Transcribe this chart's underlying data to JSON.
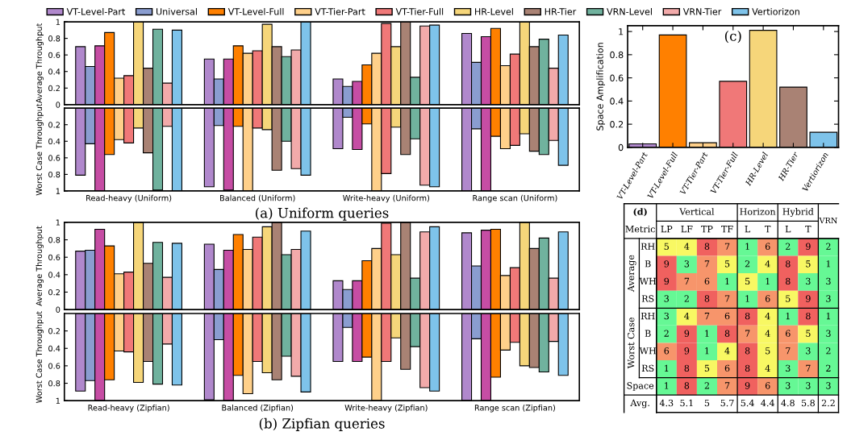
{
  "chart_data": [
    {
      "type": "bar",
      "ylabel": "Average Throughput",
      "categories": [
        null,
        null,
        null,
        null
      ],
      "ylim": [
        0,
        1
      ],
      "yticks": [
        0,
        0.2,
        0.4,
        0.6,
        0.8,
        1
      ],
      "tick_labels": "y",
      "legend": "top",
      "series": [
        {
          "name": "VT-Level-Part",
          "color": "#b088cc",
          "values": [
            0.7,
            0.55,
            0.31,
            0.86
          ]
        },
        {
          "name": "Universal",
          "color": "#8a9dd0",
          "values": [
            0.46,
            0.31,
            0.22,
            0.51
          ]
        },
        {
          "color": "#c64da4",
          "values": [
            0.71,
            0.55,
            0.28,
            0.82
          ]
        },
        {
          "name": "VT-Level-Full",
          "color": "#ff8000",
          "values": [
            0.87,
            0.71,
            0.48,
            0.92
          ]
        },
        {
          "name": "VT-Tier-Part",
          "color": "#ffd08a",
          "values": [
            0.32,
            0.62,
            0.62,
            0.47
          ]
        },
        {
          "name": "VT-Tier-Full",
          "color": "#f07878",
          "values": [
            0.35,
            0.65,
            0.98,
            0.61
          ]
        },
        {
          "name": "HR-Level",
          "color": "#f6d67a",
          "values": [
            1.0,
            0.97,
            0.7,
            1.0
          ]
        },
        {
          "name": "HR-Tier",
          "color": "#a98274",
          "values": [
            0.44,
            0.7,
            1.0,
            0.7
          ]
        },
        {
          "name": "VRN-Level",
          "color": "#70b29e",
          "values": [
            0.91,
            0.58,
            0.33,
            0.79
          ]
        },
        {
          "name": "VRN-Tier",
          "color": "#f2aaaa",
          "values": [
            0.26,
            0.66,
            0.95,
            0.44
          ]
        },
        {
          "name": "Vertiorizon",
          "color": "#7ec3ea",
          "values": [
            0.9,
            1.0,
            0.96,
            0.84
          ]
        }
      ]
    },
    {
      "type": "bar",
      "ylabel": "Worst Case Throughput",
      "categories": [
        "Read-heavy (Uniform)",
        "Balanced (Uniform)",
        "Write-heavy (Uniform)",
        "Range scan (Uniform)"
      ],
      "ylim": [
        1,
        0
      ],
      "yticks": [
        0.2,
        0.4,
        0.6,
        0.8,
        1
      ],
      "annotations": [
        "(a) Uniform queries"
      ],
      "series": [
        {
          "color": "#b088cc",
          "values": [
            0.81,
            0.95,
            0.49,
            1.0
          ]
        },
        {
          "color": "#8a9dd0",
          "values": [
            0.43,
            0.21,
            0.11,
            0.25
          ]
        },
        {
          "color": "#c64da4",
          "values": [
            1.0,
            0.99,
            0.5,
            1.0
          ]
        },
        {
          "color": "#ff8000",
          "values": [
            0.56,
            0.22,
            0.19,
            0.34
          ]
        },
        {
          "color": "#ffd08a",
          "values": [
            0.38,
            1.0,
            1.0,
            0.49
          ]
        },
        {
          "color": "#f07878",
          "values": [
            0.42,
            0.24,
            0.79,
            0.45
          ]
        },
        {
          "color": "#f6d67a",
          "values": [
            0.24,
            0.26,
            0.23,
            0.31
          ]
        },
        {
          "color": "#a98274",
          "values": [
            0.54,
            0.75,
            0.56,
            0.52
          ]
        },
        {
          "color": "#70b29e",
          "values": [
            0.99,
            0.4,
            0.37,
            0.56
          ]
        },
        {
          "color": "#f2aaaa",
          "values": [
            0.22,
            0.73,
            0.93,
            0.39
          ]
        },
        {
          "color": "#7ec3ea",
          "values": [
            1.0,
            0.81,
            0.95,
            0.69
          ]
        }
      ]
    },
    {
      "type": "bar",
      "ylabel": "Average Throughput",
      "categories": [
        null,
        null,
        null,
        null
      ],
      "ylim": [
        0,
        1
      ],
      "yticks": [
        0,
        0.2,
        0.4,
        0.6,
        0.8,
        1
      ],
      "tick_labels": "y",
      "series": [
        {
          "color": "#b088cc",
          "values": [
            0.67,
            0.75,
            0.33,
            0.88
          ]
        },
        {
          "color": "#8a9dd0",
          "values": [
            0.68,
            0.46,
            0.23,
            0.5
          ]
        },
        {
          "color": "#c64da4",
          "values": [
            0.92,
            0.68,
            0.33,
            0.91
          ]
        },
        {
          "color": "#ff8000",
          "values": [
            0.73,
            0.86,
            0.56,
            0.92
          ]
        },
        {
          "color": "#ffd08a",
          "values": [
            0.41,
            0.69,
            0.7,
            0.39
          ]
        },
        {
          "color": "#f07878",
          "values": [
            0.43,
            0.83,
            0.99,
            0.48
          ]
        },
        {
          "color": "#f6d67a",
          "values": [
            1.0,
            0.95,
            0.63,
            1.0
          ]
        },
        {
          "color": "#a98274",
          "values": [
            0.53,
            1.0,
            1.0,
            0.7
          ]
        },
        {
          "color": "#70b29e",
          "values": [
            0.77,
            0.63,
            0.36,
            0.82
          ]
        },
        {
          "color": "#f2aaaa",
          "values": [
            0.37,
            0.69,
            0.89,
            0.36
          ]
        },
        {
          "color": "#7ec3ea",
          "values": [
            0.76,
            0.9,
            0.95,
            0.89
          ]
        }
      ]
    },
    {
      "type": "bar",
      "ylabel": "Worst Case Throughput",
      "categories": [
        "Read-heavy (Zipfian)",
        "Balanced (Zipfian)",
        "Write-heavy (Zipfian)",
        "Range scan (Zipfian)"
      ],
      "ylim": [
        1,
        0
      ],
      "yticks": [
        0.2,
        0.4,
        0.6,
        0.8,
        1
      ],
      "annotations": [
        "(b) Zipfian queries"
      ],
      "series": [
        {
          "color": "#b088cc",
          "values": [
            0.89,
            0.99,
            0.55,
            1.0
          ]
        },
        {
          "color": "#8a9dd0",
          "values": [
            0.77,
            0.3,
            0.16,
            0.29
          ]
        },
        {
          "color": "#c64da4",
          "values": [
            1.0,
            1.0,
            0.55,
            1.0
          ]
        },
        {
          "color": "#ff8000",
          "values": [
            0.76,
            0.71,
            0.5,
            0.73
          ]
        },
        {
          "color": "#ffd08a",
          "values": [
            0.43,
            0.92,
            1.0,
            0.42
          ]
        },
        {
          "color": "#f07878",
          "values": [
            0.44,
            0.55,
            0.55,
            0.33
          ]
        },
        {
          "color": "#f6d67a",
          "values": [
            0.79,
            0.68,
            0.28,
            0.6
          ]
        },
        {
          "color": "#a98274",
          "values": [
            0.55,
            0.76,
            0.64,
            0.62
          ]
        },
        {
          "color": "#70b29e",
          "values": [
            0.81,
            0.49,
            0.38,
            0.67
          ]
        },
        {
          "color": "#f2aaaa",
          "values": [
            0.35,
            0.72,
            0.85,
            0.32
          ]
        },
        {
          "color": "#7ec3ea",
          "values": [
            0.82,
            0.9,
            0.89,
            0.71
          ]
        }
      ]
    },
    {
      "type": "bar",
      "ylabel": "Space Amplification",
      "categories": [
        "VT-Level-Part",
        "VT-Level-Full",
        "VT-Tier-Part",
        "VT-Tier-Full",
        "HR-Level",
        "HR-Tier",
        "Vertiorizon"
      ],
      "values": [
        0.03,
        0.97,
        0.04,
        0.57,
        1.01,
        0.52,
        0.13
      ],
      "colors": [
        "#b088cc",
        "#ff8000",
        "#ffd08a",
        "#f07878",
        "#f6d67a",
        "#a98274",
        "#7ec3ea"
      ],
      "ylim": [
        0,
        1.05
      ],
      "yticks": [
        0,
        0.2,
        0.4,
        0.6,
        0.8,
        1
      ],
      "annotations": [
        "(c)"
      ]
    },
    {
      "type": "heatmap",
      "categories": [
        "LP",
        "LF",
        "TP",
        "TF",
        "L",
        "T",
        "L",
        "T",
        "VRN"
      ],
      "y_categories": [
        "RH",
        "B",
        "WH",
        "RS",
        "RH",
        "B",
        "WH",
        "RS",
        "Space",
        "Avg."
      ],
      "cells": [
        [
          5,
          4,
          8,
          7,
          1,
          6,
          2,
          9,
          2
        ],
        [
          9,
          3,
          7,
          5,
          2,
          4,
          8,
          5,
          1
        ],
        [
          9,
          7,
          6,
          1,
          5,
          1,
          8,
          3,
          3
        ],
        [
          3,
          2,
          8,
          7,
          1,
          6,
          5,
          9,
          3
        ],
        [
          3,
          4,
          7,
          6,
          8,
          4,
          1,
          8,
          1
        ],
        [
          2,
          9,
          1,
          8,
          7,
          4,
          6,
          5,
          3
        ],
        [
          6,
          9,
          1,
          4,
          8,
          5,
          7,
          3,
          2
        ],
        [
          1,
          8,
          5,
          6,
          8,
          4,
          3,
          7,
          2
        ],
        [
          1,
          8,
          2,
          7,
          9,
          6,
          3,
          3,
          3
        ],
        [
          null,
          null,
          null,
          null,
          null,
          null,
          null,
          null,
          null
        ]
      ],
      "cell_labels": [
        [
          "5",
          "4",
          "8",
          "7",
          "1",
          "6",
          "2",
          "9",
          "2"
        ],
        [
          "9",
          "3",
          "7",
          "5",
          "2",
          "4",
          "8",
          "5",
          "1"
        ],
        [
          "9",
          "7",
          "6",
          "1",
          "5",
          "1",
          "8",
          "3",
          "3"
        ],
        [
          "3",
          "2",
          "8",
          "7",
          "1",
          "6",
          "5",
          "9",
          "3"
        ],
        [
          "3",
          "4",
          "7",
          "6",
          "8",
          "4",
          "1",
          "8",
          "1"
        ],
        [
          "2",
          "9",
          "1",
          "8",
          "7",
          "4",
          "6",
          "5",
          "3"
        ],
        [
          "6",
          "9",
          "1",
          "4",
          "8",
          "5",
          "7",
          "3",
          "2"
        ],
        [
          "1",
          "8",
          "5",
          "6",
          "8",
          "4",
          "3",
          "7",
          "2"
        ],
        [
          "1",
          "8",
          "2",
          "7",
          "9",
          "6",
          "3",
          "3",
          "3"
        ],
        [
          "4.3",
          "5.1",
          "5",
          "5.7",
          "5.4",
          "4.4",
          "4.8",
          "5.8",
          "2.2"
        ]
      ],
      "colors": [
        "#66f895",
        "#66f895",
        "#66f895",
        "#f8f863",
        "#f8f863",
        "#f7956b",
        "#f7956b",
        "#f0615f",
        "#f0615f"
      ],
      "annotations": [
        "(d)",
        "Metric",
        "Vertical",
        "Horizon",
        "Hybrid",
        "Average",
        "Worst Case"
      ]
    }
  ]
}
